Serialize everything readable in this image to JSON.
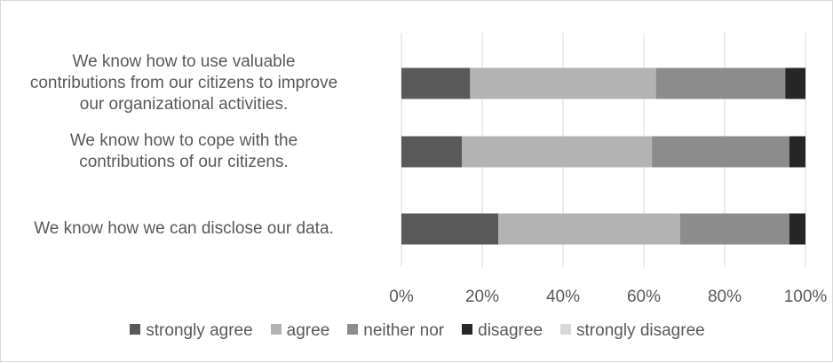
{
  "chart_data": {
    "type": "bar",
    "orientation": "horizontal",
    "stacked": true,
    "percent_scale": true,
    "title": "",
    "xlabel": "",
    "ylabel": "",
    "xlim": [
      0,
      100
    ],
    "x_ticks": [
      "0%",
      "20%",
      "40%",
      "60%",
      "80%",
      "100%"
    ],
    "grid": "vertical",
    "legend_position": "bottom",
    "categories": [
      [
        "We know how to use valuable",
        "contributions from our citizens to improve",
        "our organizational activities."
      ],
      [
        "We know how to cope with the",
        "contributions of our citizens."
      ],
      [
        "We know how we can disclose our data."
      ]
    ],
    "series": [
      {
        "name": "strongly agree",
        "color": "#595959",
        "values": [
          17,
          15,
          24
        ]
      },
      {
        "name": "agree",
        "color": "#b3b3b3",
        "values": [
          46,
          47,
          45
        ]
      },
      {
        "name": "neither nor",
        "color": "#8c8c8c",
        "values": [
          32,
          34,
          27
        ]
      },
      {
        "name": "disagree",
        "color": "#262626",
        "values": [
          5,
          4,
          4
        ]
      },
      {
        "name": "strongly disagree",
        "color": "#d9d9d9",
        "values": [
          0,
          0,
          0
        ]
      }
    ]
  }
}
